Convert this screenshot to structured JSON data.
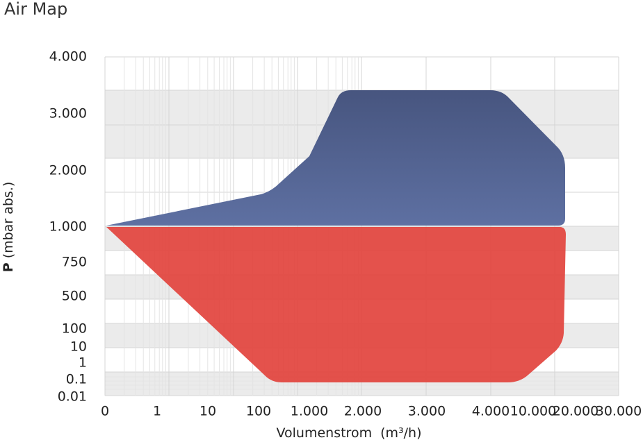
{
  "chart_data": {
    "type": "area",
    "title": "Air Map",
    "x_label": "Volumenstrom",
    "x_unit": "(m³/h)",
    "y_label_bold": "P",
    "y_label": "(mbar abs.)",
    "categories": [
      "0",
      "1",
      "10",
      "100",
      "1.000",
      "2.000",
      "3.000",
      "4.000",
      "10.000",
      "20.000",
      "30.000"
    ],
    "y_categories": [
      "4.000",
      "3.000",
      "2.000",
      "1.000",
      "750",
      "500",
      "100",
      "10",
      "1",
      "0.1",
      "0.01"
    ]
  }
}
